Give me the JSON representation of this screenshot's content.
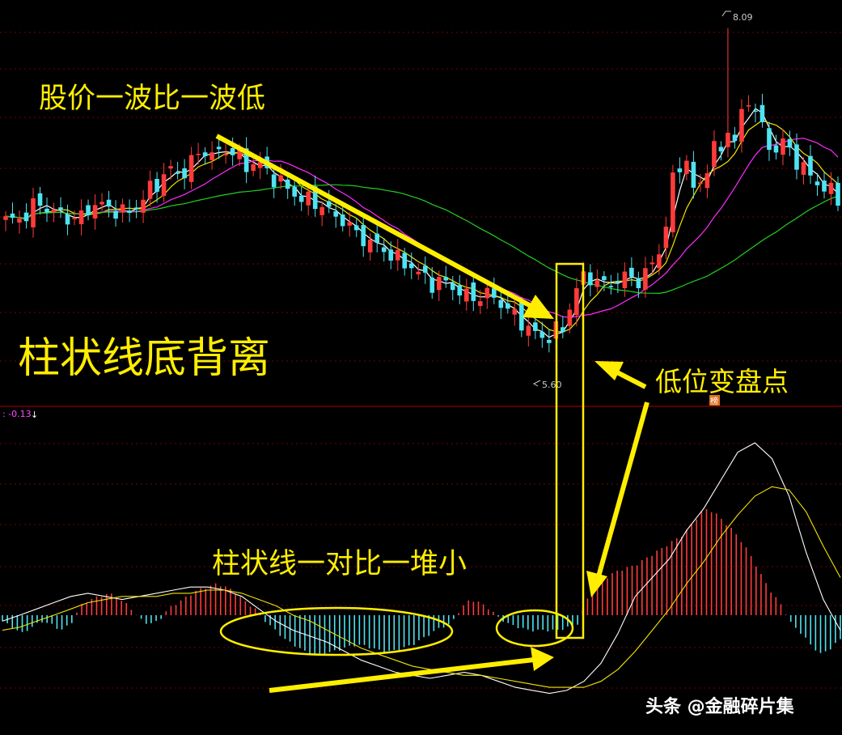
{
  "colors": {
    "up": "#ff3b3b",
    "down": "#4fe3f2",
    "ma_white": "#ffffff",
    "ma_yellow": "#f2e600",
    "ma_magenta": "#ff2bff",
    "ma_green": "#22d022",
    "annotation": "#ffee00",
    "grid": "#7a0000",
    "divider": "#b00000"
  },
  "annotations": {
    "price_lower_lows": "股价一波比一波低",
    "histogram_divergence": "柱状线底背离",
    "turning_point": "低位变盘点",
    "bars_smaller": "柱状线一对比一堆小"
  },
  "price_panel": {
    "high_label": "8.09",
    "low_label": "5.60",
    "marker": "榜"
  },
  "macd_panel": {
    "value_label": ": -0.13",
    "down_arrow_icon": "↓"
  },
  "watermark": "头条 @金融碎片集",
  "chart_data": [
    {
      "type": "candlestick",
      "title": "",
      "yrange": [
        5.1,
        8.25
      ],
      "high": 8.09,
      "low": 5.6,
      "close_path": [
        6.55,
        6.55,
        6.6,
        6.7,
        6.62,
        6.6,
        6.55,
        6.58,
        6.68,
        6.66,
        6.63,
        6.6,
        6.66,
        6.78,
        6.86,
        6.96,
        6.9,
        7.02,
        7.12,
        7.06,
        7.12,
        7.08,
        6.98,
        7.02,
        6.92,
        6.86,
        6.78,
        6.72,
        6.7,
        6.66,
        6.58,
        6.54,
        6.44,
        6.38,
        6.34,
        6.28,
        6.22,
        6.18,
        6.1,
        6.04,
        6.06,
        6.0,
        5.94,
        5.92,
        5.96,
        5.9,
        5.82,
        5.74,
        5.66,
        5.6,
        5.64,
        5.72,
        5.98,
        6.12,
        6.05,
        6.02,
        6.08,
        6.1,
        6.05,
        6.2,
        6.35,
        6.9,
        7.08,
        6.72,
        6.98,
        7.18,
        6.95,
        7.35,
        7.55,
        7.3,
        7.08,
        7.18,
        7.05,
        6.95,
        6.85,
        6.8,
        6.72
      ],
      "moving_averages": [
        "white",
        "yellow",
        "magenta",
        "green"
      ]
    },
    {
      "type": "bar",
      "title": "",
      "yrange": [
        -0.35,
        0.62
      ],
      "value_label": -0.13,
      "histogram": [
        -0.02,
        -0.04,
        -0.06,
        -0.04,
        -0.02,
        -0.03,
        -0.05,
        -0.03,
        0.03,
        0.05,
        0.06,
        0.07,
        0.05,
        0.03,
        -0.01,
        -0.03,
        -0.02,
        0.02,
        0.04,
        0.06,
        0.08,
        0.09,
        0.1,
        0.09,
        0.07,
        0.04,
        0.02,
        -0.02,
        -0.05,
        -0.08,
        -0.1,
        -0.12,
        -0.13,
        -0.13,
        -0.12,
        -0.11,
        -0.1,
        -0.1,
        -0.11,
        -0.12,
        -0.12,
        -0.11,
        -0.1,
        -0.08,
        -0.06,
        -0.04,
        -0.03,
        0.02,
        0.05,
        0.04,
        0.02,
        -0.01,
        -0.03,
        -0.04,
        -0.05,
        -0.05,
        -0.05,
        -0.05,
        -0.04,
        -0.03,
        0.05,
        0.09,
        0.12,
        0.14,
        0.15,
        0.16,
        0.18,
        0.2,
        0.22,
        0.24,
        0.26,
        0.3,
        0.34,
        0.33,
        0.3,
        0.27,
        0.23,
        0.18,
        0.12,
        0.07,
        0.03,
        -0.03,
        -0.06,
        -0.1,
        -0.13,
        -0.11,
        -0.08
      ],
      "dif": [
        -0.02,
        0.0,
        0.02,
        0.04,
        0.06,
        0.07,
        0.06,
        0.05,
        0.06,
        0.07,
        0.08,
        0.09,
        0.09,
        0.08,
        0.06,
        0.02,
        -0.02,
        -0.05,
        -0.07,
        -0.09,
        -0.12,
        -0.15,
        -0.17,
        -0.19,
        -0.2,
        -0.21,
        -0.2,
        -0.19,
        -0.2,
        -0.22,
        -0.24,
        -0.25,
        -0.26,
        -0.25,
        -0.22,
        -0.16,
        -0.06,
        0.06,
        0.12,
        0.18,
        0.27,
        0.34,
        0.43,
        0.52,
        0.55,
        0.5,
        0.38,
        0.2,
        0.05,
        -0.05
      ],
      "dea": [
        -0.05,
        -0.04,
        -0.02,
        0.0,
        0.02,
        0.04,
        0.05,
        0.06,
        0.06,
        0.06,
        0.07,
        0.07,
        0.08,
        0.08,
        0.07,
        0.05,
        0.03,
        0.0,
        -0.02,
        -0.05,
        -0.08,
        -0.11,
        -0.13,
        -0.15,
        -0.17,
        -0.18,
        -0.19,
        -0.2,
        -0.2,
        -0.21,
        -0.22,
        -0.23,
        -0.24,
        -0.24,
        -0.24,
        -0.22,
        -0.18,
        -0.12,
        -0.05,
        0.02,
        0.1,
        0.17,
        0.25,
        0.32,
        0.38,
        0.41,
        0.4,
        0.33,
        0.22,
        0.12
      ]
    }
  ]
}
